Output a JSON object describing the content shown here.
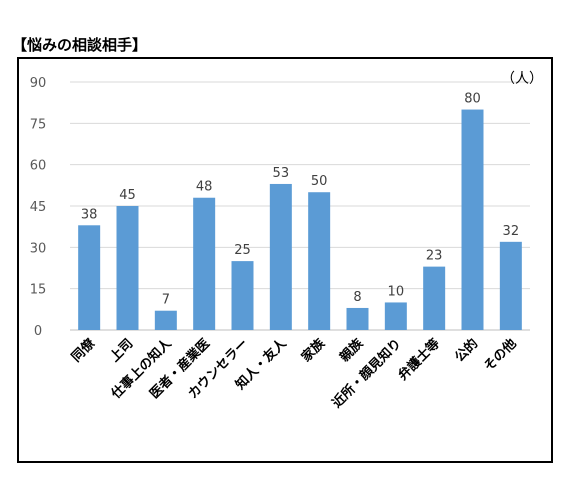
{
  "title": "【悩みの相談相手】",
  "chart_data": {
    "type": "bar",
    "unit_label": "（人）",
    "categories": [
      "同僚",
      "上司",
      "仕事上の知人",
      "医者・産業医",
      "カウンセラー",
      "知人・友人",
      "家族",
      "親族",
      "近所・顔見知り",
      "弁護士等",
      "公的",
      "その他"
    ],
    "values": [
      38,
      45,
      7,
      48,
      25,
      53,
      50,
      8,
      10,
      23,
      80,
      32
    ],
    "yticks": [
      0,
      15,
      30,
      45,
      60,
      75,
      90
    ],
    "ylim": [
      0,
      90
    ],
    "grid": true,
    "bar_color": "#5B9BD5",
    "grid_color": "#d9d9d9"
  }
}
